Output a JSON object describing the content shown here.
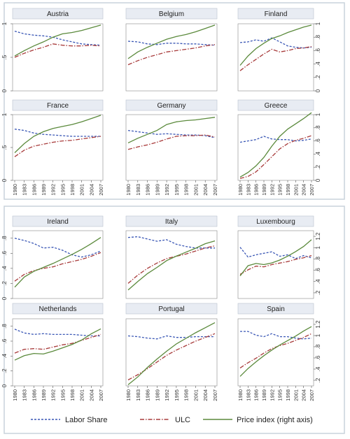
{
  "x_ticks": [
    "1980",
    "1983",
    "1986",
    "1989",
    "1992",
    "1995",
    "1998",
    "2001",
    "2004",
    "2007"
  ],
  "left_ticks": [
    "0",
    ".5",
    "1"
  ],
  "right_ticks_top": [
    "0",
    ".2",
    ".4",
    ".6",
    ".8",
    "1"
  ],
  "left_ticks_bottom": [
    "0",
    ".2",
    ".4",
    ".6",
    ".8"
  ],
  "right_ticks_bottom": [
    ".2",
    ".4",
    ".6",
    ".8",
    "1",
    "1.2"
  ],
  "legend": {
    "labor": "Labor Share",
    "ulc": "ULC",
    "price": "Price index (right axis)"
  },
  "colors": {
    "labor": "#3a57b5",
    "ulc": "#a83b3b",
    "price": "#5b8a3c",
    "strip": "#e8ecf3",
    "outer": "#dfe6ef"
  },
  "chart_data": [
    {
      "type": "line",
      "title": "Austria",
      "x": [
        1980,
        1983,
        1986,
        1989,
        1992,
        1995,
        1998,
        2001,
        2004,
        2007
      ],
      "left_range": [
        0,
        1
      ],
      "right_range": [
        0,
        1
      ],
      "series": [
        {
          "name": "Labor Share",
          "values": [
            0.89,
            0.85,
            0.83,
            0.82,
            0.8,
            0.76,
            0.73,
            0.7,
            0.69,
            0.68
          ]
        },
        {
          "name": "ULC",
          "values": [
            0.5,
            0.56,
            0.61,
            0.65,
            0.7,
            0.68,
            0.67,
            0.67,
            0.68,
            0.67
          ]
        },
        {
          "name": "Price index (right axis)",
          "values": [
            0.52,
            0.6,
            0.67,
            0.73,
            0.8,
            0.85,
            0.87,
            0.9,
            0.94,
            0.98
          ]
        }
      ]
    },
    {
      "type": "line",
      "title": "Belgium",
      "x": [
        1980,
        1983,
        1986,
        1989,
        1992,
        1995,
        1998,
        2001,
        2004,
        2007
      ],
      "left_range": [
        0,
        1
      ],
      "right_range": [
        0,
        1
      ],
      "series": [
        {
          "name": "Labor Share",
          "values": [
            0.74,
            0.73,
            0.7,
            0.69,
            0.71,
            0.71,
            0.7,
            0.7,
            0.69,
            0.68
          ]
        },
        {
          "name": "ULC",
          "values": [
            0.39,
            0.45,
            0.5,
            0.54,
            0.58,
            0.6,
            0.62,
            0.64,
            0.67,
            0.69
          ]
        },
        {
          "name": "Price index (right axis)",
          "values": [
            0.48,
            0.58,
            0.65,
            0.71,
            0.77,
            0.81,
            0.84,
            0.88,
            0.93,
            0.98
          ]
        }
      ]
    },
    {
      "type": "line",
      "title": "Finland",
      "x": [
        1980,
        1983,
        1986,
        1989,
        1992,
        1995,
        1998,
        2001,
        2004,
        2007
      ],
      "left_range": [
        0,
        1
      ],
      "right_range": [
        0,
        1
      ],
      "series": [
        {
          "name": "Labor Share",
          "values": [
            0.72,
            0.73,
            0.76,
            0.74,
            0.79,
            0.73,
            0.67,
            0.65,
            0.64,
            0.65
          ]
        },
        {
          "name": "ULC",
          "values": [
            0.3,
            0.39,
            0.47,
            0.55,
            0.62,
            0.58,
            0.6,
            0.63,
            0.64,
            0.66
          ]
        },
        {
          "name": "Price index (right axis)",
          "values": [
            0.38,
            0.52,
            0.63,
            0.71,
            0.78,
            0.82,
            0.87,
            0.91,
            0.95,
            0.98
          ]
        }
      ]
    },
    {
      "type": "line",
      "title": "France",
      "x": [
        1980,
        1983,
        1986,
        1989,
        1992,
        1995,
        1998,
        2001,
        2004,
        2007
      ],
      "left_range": [
        0,
        1
      ],
      "right_range": [
        0,
        1
      ],
      "series": [
        {
          "name": "Labor Share",
          "values": [
            0.78,
            0.76,
            0.72,
            0.7,
            0.69,
            0.68,
            0.67,
            0.67,
            0.67,
            0.67
          ]
        },
        {
          "name": "ULC",
          "values": [
            0.36,
            0.46,
            0.52,
            0.55,
            0.58,
            0.6,
            0.61,
            0.63,
            0.65,
            0.67
          ]
        },
        {
          "name": "Price index (right axis)",
          "values": [
            0.42,
            0.56,
            0.67,
            0.74,
            0.79,
            0.82,
            0.85,
            0.89,
            0.94,
            0.99
          ]
        }
      ]
    },
    {
      "type": "line",
      "title": "Germany",
      "x": [
        1980,
        1983,
        1986,
        1989,
        1992,
        1995,
        1998,
        2001,
        2004,
        2007
      ],
      "left_range": [
        0,
        1
      ],
      "right_range": [
        0,
        1
      ],
      "series": [
        {
          "name": "Labor Share",
          "values": [
            0.76,
            0.74,
            0.72,
            0.7,
            0.71,
            0.7,
            0.69,
            0.69,
            0.68,
            0.65
          ]
        },
        {
          "name": "ULC",
          "values": [
            0.47,
            0.51,
            0.54,
            0.58,
            0.63,
            0.67,
            0.68,
            0.68,
            0.69,
            0.66
          ]
        },
        {
          "name": "Price index (right axis)",
          "values": [
            0.57,
            0.64,
            0.7,
            0.76,
            0.85,
            0.89,
            0.91,
            0.92,
            0.94,
            0.96
          ]
        }
      ]
    },
    {
      "type": "line",
      "title": "Greece",
      "x": [
        1980,
        1983,
        1986,
        1989,
        1992,
        1995,
        1998,
        2001,
        2004,
        2007
      ],
      "left_range": [
        0,
        1
      ],
      "right_range": [
        0,
        1
      ],
      "series": [
        {
          "name": "Labor Share",
          "values": [
            0.58,
            0.6,
            0.62,
            0.67,
            0.63,
            0.62,
            0.62,
            0.6,
            0.61,
            0.63
          ]
        },
        {
          "name": "ULC",
          "values": [
            0.03,
            0.06,
            0.13,
            0.24,
            0.36,
            0.48,
            0.56,
            0.61,
            0.64,
            0.68
          ]
        },
        {
          "name": "Price index (right axis)",
          "values": [
            0.05,
            0.12,
            0.22,
            0.35,
            0.52,
            0.67,
            0.78,
            0.86,
            0.94,
            1.03
          ]
        }
      ]
    },
    {
      "type": "line",
      "title": "Ireland",
      "x": [
        1980,
        1983,
        1986,
        1989,
        1992,
        1995,
        1998,
        2001,
        2004,
        2007
      ],
      "left_range": [
        0,
        0.9
      ],
      "right_range": [
        0.1,
        1.3
      ],
      "series": [
        {
          "name": "Labor Share",
          "values": [
            0.8,
            0.77,
            0.73,
            0.67,
            0.68,
            0.64,
            0.58,
            0.55,
            0.58,
            0.63
          ]
        },
        {
          "name": "ULC",
          "values": [
            0.23,
            0.32,
            0.37,
            0.4,
            0.42,
            0.46,
            0.49,
            0.52,
            0.56,
            0.61
          ]
        },
        {
          "name": "Price index (right axis)",
          "values": [
            0.3,
            0.48,
            0.58,
            0.65,
            0.72,
            0.8,
            0.88,
            0.97,
            1.07,
            1.18
          ]
        }
      ]
    },
    {
      "type": "line",
      "title": "Italy",
      "x": [
        1980,
        1983,
        1986,
        1989,
        1992,
        1995,
        1998,
        2001,
        2004,
        2007
      ],
      "left_range": [
        0,
        0.9
      ],
      "right_range": [
        0.1,
        1.3
      ],
      "series": [
        {
          "name": "Labor Share",
          "values": [
            0.81,
            0.82,
            0.79,
            0.76,
            0.78,
            0.72,
            0.69,
            0.67,
            0.67,
            0.67
          ]
        },
        {
          "name": "ULC",
          "values": [
            0.2,
            0.31,
            0.4,
            0.47,
            0.53,
            0.56,
            0.59,
            0.63,
            0.67,
            0.7
          ]
        },
        {
          "name": "Price index (right axis)",
          "values": [
            0.25,
            0.4,
            0.54,
            0.65,
            0.77,
            0.85,
            0.92,
            0.99,
            1.07,
            1.12
          ]
        }
      ]
    },
    {
      "type": "line",
      "title": "Luxembourg",
      "x": [
        1980,
        1983,
        1986,
        1989,
        1992,
        1995,
        1998,
        2001,
        2004,
        2007
      ],
      "left_range": [
        0,
        0.9
      ],
      "right_range": [
        0.1,
        1.3
      ],
      "series": [
        {
          "name": "Labor Share",
          "values": [
            0.68,
            0.55,
            0.58,
            0.6,
            0.62,
            0.56,
            0.58,
            0.53,
            0.57,
            0.54
          ]
        },
        {
          "name": "ULC",
          "values": [
            0.32,
            0.38,
            0.43,
            0.42,
            0.45,
            0.47,
            0.49,
            0.52,
            0.54,
            0.57
          ]
        },
        {
          "name": "Price index (right axis)",
          "values": [
            0.5,
            0.68,
            0.72,
            0.7,
            0.73,
            0.78,
            0.85,
            0.93,
            1.02,
            1.14
          ]
        }
      ]
    },
    {
      "type": "line",
      "title": "Netherlands",
      "x": [
        1980,
        1983,
        1986,
        1989,
        1992,
        1995,
        1998,
        2001,
        2004,
        2007
      ],
      "left_range": [
        0,
        0.9
      ],
      "right_range": [
        0.1,
        1.3
      ],
      "series": [
        {
          "name": "Labor Share",
          "values": [
            0.76,
            0.71,
            0.69,
            0.7,
            0.69,
            0.69,
            0.69,
            0.68,
            0.67,
            0.67
          ]
        },
        {
          "name": "ULC",
          "values": [
            0.44,
            0.49,
            0.5,
            0.49,
            0.52,
            0.55,
            0.57,
            0.61,
            0.65,
            0.69
          ]
        },
        {
          "name": "Price index (right axis)",
          "values": [
            0.56,
            0.64,
            0.68,
            0.67,
            0.72,
            0.78,
            0.84,
            0.92,
            1.03,
            1.12
          ]
        }
      ]
    },
    {
      "type": "line",
      "title": "Portugal",
      "x": [
        1980,
        1983,
        1986,
        1989,
        1992,
        1995,
        1998,
        2001,
        2004,
        2007
      ],
      "left_range": [
        0,
        0.9
      ],
      "right_range": [
        0.1,
        1.3
      ],
      "series": [
        {
          "name": "Labor Share",
          "values": [
            0.67,
            0.66,
            0.64,
            0.63,
            0.67,
            0.65,
            0.65,
            0.66,
            0.66,
            0.66
          ]
        },
        {
          "name": "ULC",
          "values": [
            0.08,
            0.15,
            0.23,
            0.32,
            0.41,
            0.48,
            0.54,
            0.6,
            0.65,
            0.7
          ]
        },
        {
          "name": "Price index (right axis)",
          "values": [
            0.12,
            0.26,
            0.43,
            0.58,
            0.72,
            0.85,
            0.95,
            1.05,
            1.14,
            1.23
          ]
        }
      ]
    },
    {
      "type": "line",
      "title": "Spain",
      "x": [
        1980,
        1983,
        1986,
        1989,
        1992,
        1995,
        1998,
        2001,
        2004,
        2007
      ],
      "left_range": [
        0,
        0.9
      ],
      "right_range": [
        0.1,
        1.3
      ],
      "series": [
        {
          "name": "Labor Share",
          "values": [
            0.73,
            0.73,
            0.68,
            0.66,
            0.7,
            0.66,
            0.66,
            0.64,
            0.63,
            0.64
          ]
        },
        {
          "name": "ULC",
          "values": [
            0.24,
            0.31,
            0.37,
            0.44,
            0.5,
            0.54,
            0.57,
            0.61,
            0.65,
            0.7
          ]
        },
        {
          "name": "Price index (right axis)",
          "values": [
            0.27,
            0.41,
            0.53,
            0.64,
            0.74,
            0.83,
            0.91,
            0.99,
            1.08,
            1.16
          ]
        }
      ]
    }
  ]
}
